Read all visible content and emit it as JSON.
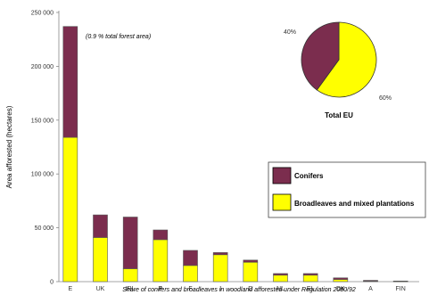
{
  "chart_data": [
    {
      "type": "bar",
      "stacked": true,
      "categories": [
        "E",
        "UK",
        "IRL",
        "P",
        "F",
        "I",
        "D",
        "NL",
        "EL",
        "DK",
        "A",
        "FIN"
      ],
      "series": [
        {
          "name": "Broadleaves  and mixed plantations",
          "color": "#FFFF00",
          "values": [
            134000,
            41000,
            12000,
            39000,
            15000,
            25000,
            18000,
            6000,
            6000,
            2000,
            500,
            300
          ]
        },
        {
          "name": "Conifers",
          "color": "#7B2D4E",
          "values": [
            103000,
            21000,
            48000,
            9000,
            14000,
            2000,
            2000,
            1500,
            1500,
            1500,
            700,
            300
          ]
        }
      ],
      "yticks": [
        "0",
        "50 000",
        "100 000",
        "150 000",
        "200 000",
        "250 000"
      ],
      "ylim": [
        0,
        250000
      ],
      "ylabel": "Area afforested  (hectares)",
      "annotation": "(0.9 % total forest area)",
      "caption": "Share of conifers and broadleaves in woodland afforested  under Regulation 2080/92",
      "legend": [
        "Conifers",
        "Broadleaves  and mixed plantations"
      ],
      "legend_position": "right"
    },
    {
      "type": "pie",
      "labels": [
        "Conifers",
        "Broadleaves  and mixed plantations"
      ],
      "values": [
        40,
        60
      ],
      "value_labels": [
        "40%",
        "60%"
      ],
      "colors": [
        "#7B2D4E",
        "#FFFF00"
      ],
      "title": "Total EU"
    }
  ]
}
